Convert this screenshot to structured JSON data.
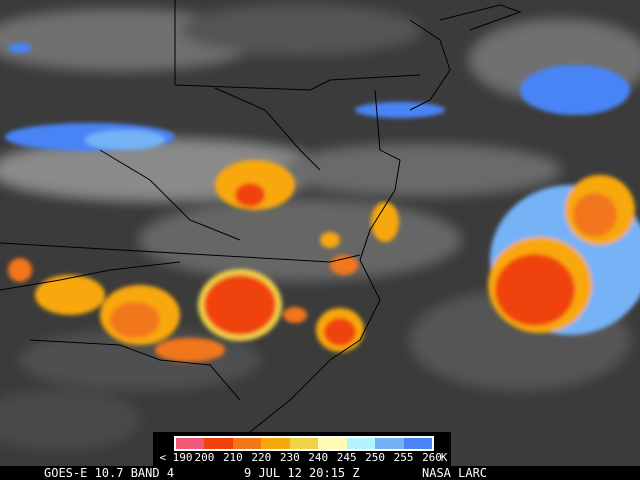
{
  "legend": {
    "colors": [
      "#f05a78",
      "#f0420a",
      "#f2761a",
      "#f8a80c",
      "#f0d248",
      "#fffab4",
      "#b4f4ff",
      "#74b2f6",
      "#4a84f6"
    ],
    "ticks": [
      "< 190",
      "200",
      "210",
      "220",
      "230",
      "240",
      "245",
      "250",
      "255",
      "260",
      "K"
    ]
  },
  "footer": {
    "satellite": "GOES-E 10.7 BAND 4",
    "datetime": "9 JUL 12 20:15 Z",
    "source": "NASA LARC"
  },
  "image": {
    "type": "infrared satellite image with state boundaries and coastline",
    "background_color": "#3a3a3a"
  }
}
